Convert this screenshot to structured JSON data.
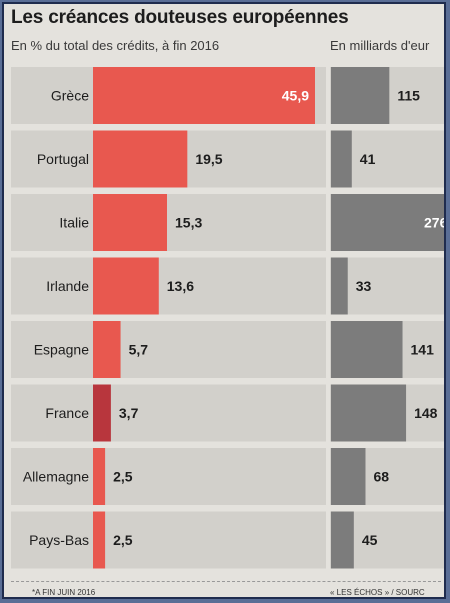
{
  "title": "Les créances douteuses européennes",
  "subtitle_left": "En % du total des crédits, à fin 2016",
  "subtitle_right": "En milliards d'eur",
  "footnote_left": "*A FIN JUIN 2016",
  "footnote_right": "« LES ÉCHOS » / SOURC",
  "colors": {
    "red_bar": "#e8584f",
    "france_bar": "#b8363d",
    "gray_bar": "#7c7c7c",
    "row_bg": "#d2d0cb",
    "page_bg": "#e4e2dd"
  },
  "chart_data": [
    {
      "type": "bar",
      "orientation": "horizontal",
      "title": "Les créances douteuses européennes",
      "subtitle": "En % du total des crédits, à fin 2016",
      "categories": [
        "Grèce",
        "Portugal",
        "Italie",
        "Irlande",
        "Espagne",
        "France",
        "Allemagne",
        "Pays-Bas"
      ],
      "values": [
        45.9,
        19.5,
        15.3,
        13.6,
        5.7,
        3.7,
        2.5,
        2.5
      ],
      "value_labels": [
        "45,9",
        "19,5",
        "15,3",
        "13,6",
        "5,7",
        "3,7",
        "2,5",
        "2,5"
      ],
      "highlight": "France",
      "xlim": [
        0,
        45.9
      ],
      "grid": false
    },
    {
      "type": "bar",
      "orientation": "horizontal",
      "subtitle": "En milliards d'eur",
      "categories": [
        "Grèce",
        "Portugal",
        "Italie",
        "Irlande",
        "Espagne",
        "France",
        "Allemagne",
        "Pays-Bas"
      ],
      "values": [
        115,
        41,
        276,
        33,
        141,
        148,
        68,
        45
      ],
      "value_labels": [
        "115",
        "41",
        "276",
        "33",
        "141",
        "148",
        "68",
        "45"
      ],
      "grid": false
    }
  ]
}
